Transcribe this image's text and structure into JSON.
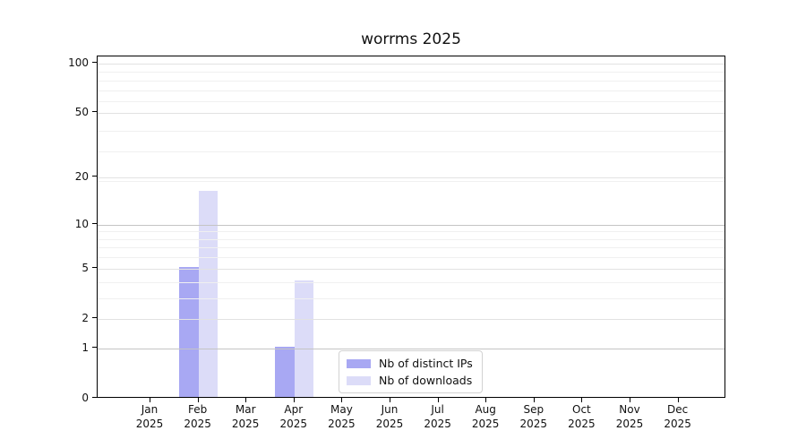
{
  "chart_data": {
    "type": "bar",
    "title": "worrms 2025",
    "x_year": "2025",
    "categories": [
      "Jan",
      "Feb",
      "Mar",
      "Apr",
      "May",
      "Jun",
      "Jul",
      "Aug",
      "Sep",
      "Oct",
      "Nov",
      "Dec"
    ],
    "series": [
      {
        "name": "Nb of distinct IPs",
        "color": "#a8a8f3",
        "values": [
          0,
          5,
          0,
          1,
          0,
          0,
          0,
          0,
          0,
          0,
          0,
          0
        ]
      },
      {
        "name": "Nb of downloads",
        "color": "#dcdcf8",
        "values": [
          0,
          16,
          0,
          4,
          0,
          0,
          0,
          0,
          0,
          0,
          0,
          0
        ]
      }
    ],
    "xlabel": "",
    "ylabel": "",
    "yscale": "log10(value+1)",
    "ylim": [
      0,
      111
    ],
    "yticks": [
      0,
      1,
      2,
      5,
      10,
      20,
      50,
      100
    ],
    "strong_gridlines": [
      1,
      10
    ],
    "minor_gridlines": [
      3,
      4,
      6,
      7,
      8,
      9,
      19,
      29,
      39,
      59,
      69,
      79,
      89
    ],
    "grid": true,
    "legend_position": "lower center"
  }
}
